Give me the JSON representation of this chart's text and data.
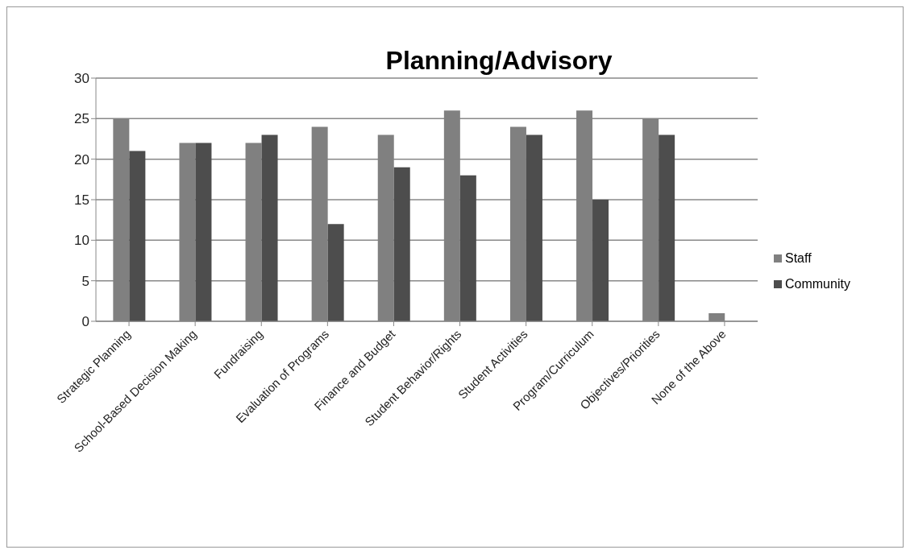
{
  "chart_data": {
    "type": "bar",
    "title": "Planning/Advisory",
    "categories": [
      "Strategic Planning",
      "School-Based Decision Making",
      "Fundraising",
      "Evaluation of Programs",
      "Finance and Budget",
      "Student Behavior/Rights",
      "Student Activities",
      "Program/Curriculum",
      "Objectives/Priorities",
      "None of the Above"
    ],
    "series": [
      {
        "name": "Staff",
        "color": "#808080",
        "values": [
          25,
          22,
          22,
          24,
          23,
          26,
          24,
          26,
          25,
          1
        ]
      },
      {
        "name": "Community",
        "color": "#4d4d4d",
        "values": [
          21,
          22,
          23,
          12,
          19,
          18,
          23,
          15,
          23,
          0
        ]
      }
    ],
    "ylim": [
      0,
      30
    ],
    "yticks": [
      0,
      5,
      10,
      15,
      20,
      25,
      30
    ],
    "grid": "y",
    "legend": "right"
  }
}
